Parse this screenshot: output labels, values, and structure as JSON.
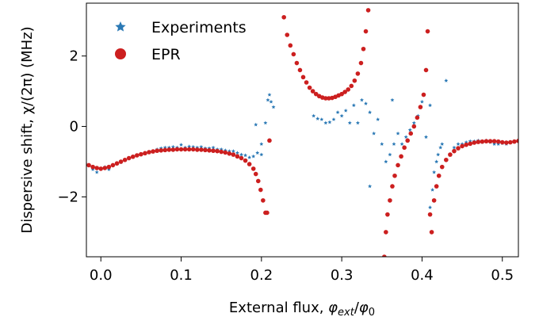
{
  "chart_data": {
    "type": "scatter",
    "xlabel": {
      "prefix": "External flux, ",
      "phi": "φ",
      "ext": "ext",
      "slash": "/",
      "phi0": "φ",
      "zero": "0"
    },
    "ylabel": "Dispersive shift, χ/(2π) (MHz)",
    "xlim": [
      -0.018,
      0.52
    ],
    "ylim": [
      -3.7,
      3.5
    ],
    "xticks": [
      0.0,
      0.1,
      0.2,
      0.3,
      0.4,
      0.5
    ],
    "xtick_labels": [
      "0.0",
      "0.1",
      "0.2",
      "0.3",
      "0.4",
      "0.5"
    ],
    "yticks": [
      -2,
      0,
      2
    ],
    "ytick_labels": [
      "−2",
      "0",
      "2"
    ],
    "legend_position": "top-left",
    "grid": false,
    "series": [
      {
        "name": "Experiments",
        "color": "#2b79b5",
        "marker": "star",
        "points": [
          [
            -0.015,
            -1.1
          ],
          [
            -0.01,
            -1.22
          ],
          [
            -0.005,
            -1.3
          ],
          [
            0.0,
            -1.2
          ],
          [
            0.005,
            -1.15
          ],
          [
            0.01,
            -1.22
          ],
          [
            0.015,
            -1.1
          ],
          [
            0.02,
            -1.05
          ],
          [
            0.025,
            -1.02
          ],
          [
            0.03,
            -0.95
          ],
          [
            0.035,
            -0.9
          ],
          [
            0.04,
            -0.85
          ],
          [
            0.045,
            -0.82
          ],
          [
            0.05,
            -0.78
          ],
          [
            0.055,
            -0.75
          ],
          [
            0.06,
            -0.72
          ],
          [
            0.065,
            -0.7
          ],
          [
            0.07,
            -0.65
          ],
          [
            0.075,
            -0.62
          ],
          [
            0.08,
            -0.6
          ],
          [
            0.085,
            -0.6
          ],
          [
            0.09,
            -0.58
          ],
          [
            0.095,
            -0.6
          ],
          [
            0.1,
            -0.52
          ],
          [
            0.105,
            -0.6
          ],
          [
            0.11,
            -0.57
          ],
          [
            0.115,
            -0.58
          ],
          [
            0.12,
            -0.6
          ],
          [
            0.125,
            -0.58
          ],
          [
            0.13,
            -0.62
          ],
          [
            0.135,
            -0.62
          ],
          [
            0.14,
            -0.6
          ],
          [
            0.145,
            -0.65
          ],
          [
            0.15,
            -0.65
          ],
          [
            0.155,
            -0.68
          ],
          [
            0.16,
            -0.7
          ],
          [
            0.165,
            -0.7
          ],
          [
            0.17,
            -0.75
          ],
          [
            0.175,
            -0.8
          ],
          [
            0.18,
            -0.82
          ],
          [
            0.185,
            -0.88
          ],
          [
            0.19,
            -0.85
          ],
          [
            0.195,
            -0.75
          ],
          [
            0.2,
            -0.8
          ],
          [
            0.193,
            0.05
          ],
          [
            0.2,
            -0.5
          ],
          [
            0.205,
            0.1
          ],
          [
            0.208,
            0.75
          ],
          [
            0.21,
            0.9
          ],
          [
            0.212,
            0.7
          ],
          [
            0.215,
            0.55
          ],
          [
            0.265,
            0.3
          ],
          [
            0.27,
            0.22
          ],
          [
            0.275,
            0.2
          ],
          [
            0.28,
            0.1
          ],
          [
            0.285,
            0.12
          ],
          [
            0.29,
            0.2
          ],
          [
            0.295,
            0.4
          ],
          [
            0.3,
            0.3
          ],
          [
            0.305,
            0.45
          ],
          [
            0.31,
            0.1
          ],
          [
            0.315,
            0.6
          ],
          [
            0.32,
            0.1
          ],
          [
            0.325,
            0.75
          ],
          [
            0.33,
            0.65
          ],
          [
            0.335,
            0.4
          ],
          [
            0.335,
            -1.7
          ],
          [
            0.34,
            -0.2
          ],
          [
            0.345,
            0.2
          ],
          [
            0.35,
            -0.5
          ],
          [
            0.355,
            -1.0
          ],
          [
            0.36,
            -0.8
          ],
          [
            0.365,
            -0.5
          ],
          [
            0.37,
            -0.2
          ],
          [
            0.375,
            -0.5
          ],
          [
            0.38,
            -0.3
          ],
          [
            0.385,
            -0.1
          ],
          [
            0.39,
            0.1
          ],
          [
            0.395,
            0.3
          ],
          [
            0.4,
            0.7
          ],
          [
            0.405,
            -0.3
          ],
          [
            0.41,
            0.6
          ],
          [
            0.363,
            0.75
          ],
          [
            0.41,
            -2.3
          ],
          [
            0.413,
            -1.8
          ],
          [
            0.415,
            -1.3
          ],
          [
            0.418,
            -1.0
          ],
          [
            0.42,
            -0.8
          ],
          [
            0.423,
            -0.6
          ],
          [
            0.425,
            -0.5
          ],
          [
            0.43,
            1.3
          ],
          [
            0.435,
            -0.8
          ],
          [
            0.44,
            -0.6
          ],
          [
            0.445,
            -0.5
          ],
          [
            0.45,
            -0.5
          ],
          [
            0.455,
            -0.45
          ],
          [
            0.46,
            -0.42
          ],
          [
            0.465,
            -0.42
          ],
          [
            0.47,
            -0.4
          ],
          [
            0.475,
            -0.45
          ],
          [
            0.48,
            -0.4
          ],
          [
            0.485,
            -0.45
          ],
          [
            0.49,
            -0.5
          ],
          [
            0.495,
            -0.5
          ],
          [
            0.5,
            -0.48
          ],
          [
            0.505,
            -0.5
          ],
          [
            0.51,
            -0.45
          ],
          [
            0.515,
            -0.42
          ],
          [
            0.52,
            -0.4
          ]
        ]
      },
      {
        "name": "EPR",
        "color": "#cc1f1f",
        "marker": "circle",
        "points": [
          [
            -0.02,
            -1.05
          ],
          [
            -0.015,
            -1.1
          ],
          [
            -0.01,
            -1.15
          ],
          [
            -0.005,
            -1.18
          ],
          [
            0.0,
            -1.2
          ],
          [
            0.005,
            -1.18
          ],
          [
            0.01,
            -1.15
          ],
          [
            0.015,
            -1.1
          ],
          [
            0.02,
            -1.05
          ],
          [
            0.025,
            -1.0
          ],
          [
            0.03,
            -0.95
          ],
          [
            0.035,
            -0.9
          ],
          [
            0.04,
            -0.86
          ],
          [
            0.045,
            -0.82
          ],
          [
            0.05,
            -0.79
          ],
          [
            0.055,
            -0.76
          ],
          [
            0.06,
            -0.73
          ],
          [
            0.065,
            -0.71
          ],
          [
            0.07,
            -0.69
          ],
          [
            0.075,
            -0.68
          ],
          [
            0.08,
            -0.67
          ],
          [
            0.085,
            -0.66
          ],
          [
            0.09,
            -0.66
          ],
          [
            0.095,
            -0.65
          ],
          [
            0.1,
            -0.65
          ],
          [
            0.105,
            -0.65
          ],
          [
            0.11,
            -0.65
          ],
          [
            0.115,
            -0.65
          ],
          [
            0.12,
            -0.66
          ],
          [
            0.125,
            -0.66
          ],
          [
            0.13,
            -0.67
          ],
          [
            0.135,
            -0.68
          ],
          [
            0.14,
            -0.69
          ],
          [
            0.145,
            -0.7
          ],
          [
            0.15,
            -0.72
          ],
          [
            0.155,
            -0.74
          ],
          [
            0.16,
            -0.77
          ],
          [
            0.165,
            -0.8
          ],
          [
            0.17,
            -0.85
          ],
          [
            0.175,
            -0.9
          ],
          [
            0.18,
            -0.97
          ],
          [
            0.185,
            -1.07
          ],
          [
            0.19,
            -1.2
          ],
          [
            0.193,
            -1.35
          ],
          [
            0.196,
            -1.55
          ],
          [
            0.199,
            -1.8
          ],
          [
            0.202,
            -2.1
          ],
          [
            0.205,
            -2.45
          ],
          [
            0.207,
            -2.45
          ],
          [
            0.21,
            -0.4
          ],
          [
            0.228,
            3.1
          ],
          [
            0.232,
            2.6
          ],
          [
            0.236,
            2.3
          ],
          [
            0.24,
            2.05
          ],
          [
            0.244,
            1.8
          ],
          [
            0.248,
            1.6
          ],
          [
            0.252,
            1.4
          ],
          [
            0.256,
            1.25
          ],
          [
            0.26,
            1.1
          ],
          [
            0.264,
            1.0
          ],
          [
            0.268,
            0.92
          ],
          [
            0.272,
            0.86
          ],
          [
            0.276,
            0.82
          ],
          [
            0.28,
            0.8
          ],
          [
            0.284,
            0.8
          ],
          [
            0.288,
            0.81
          ],
          [
            0.292,
            0.84
          ],
          [
            0.296,
            0.88
          ],
          [
            0.3,
            0.92
          ],
          [
            0.304,
            0.98
          ],
          [
            0.308,
            1.05
          ],
          [
            0.312,
            1.15
          ],
          [
            0.316,
            1.3
          ],
          [
            0.32,
            1.5
          ],
          [
            0.324,
            1.8
          ],
          [
            0.327,
            2.2
          ],
          [
            0.33,
            2.7
          ],
          [
            0.333,
            3.3
          ],
          [
            0.353,
            -3.7
          ],
          [
            0.355,
            -3.0
          ],
          [
            0.357,
            -2.5
          ],
          [
            0.36,
            -2.1
          ],
          [
            0.363,
            -1.7
          ],
          [
            0.366,
            -1.4
          ],
          [
            0.37,
            -1.1
          ],
          [
            0.374,
            -0.85
          ],
          [
            0.378,
            -0.6
          ],
          [
            0.382,
            -0.4
          ],
          [
            0.386,
            -0.2
          ],
          [
            0.39,
            0.0
          ],
          [
            0.394,
            0.25
          ],
          [
            0.398,
            0.55
          ],
          [
            0.402,
            0.9
          ],
          [
            0.405,
            1.6
          ],
          [
            0.407,
            2.7
          ],
          [
            0.41,
            -2.5
          ],
          [
            0.412,
            -3.0
          ],
          [
            0.415,
            -2.1
          ],
          [
            0.418,
            -1.7
          ],
          [
            0.421,
            -1.4
          ],
          [
            0.425,
            -1.15
          ],
          [
            0.43,
            -0.95
          ],
          [
            0.435,
            -0.8
          ],
          [
            0.44,
            -0.7
          ],
          [
            0.445,
            -0.62
          ],
          [
            0.45,
            -0.56
          ],
          [
            0.455,
            -0.52
          ],
          [
            0.46,
            -0.49
          ],
          [
            0.465,
            -0.46
          ],
          [
            0.47,
            -0.44
          ],
          [
            0.475,
            -0.43
          ],
          [
            0.48,
            -0.42
          ],
          [
            0.485,
            -0.42
          ],
          [
            0.49,
            -0.42
          ],
          [
            0.495,
            -0.43
          ],
          [
            0.5,
            -0.45
          ],
          [
            0.505,
            -0.46
          ],
          [
            0.51,
            -0.45
          ],
          [
            0.515,
            -0.43
          ],
          [
            0.52,
            -0.41
          ]
        ]
      }
    ]
  }
}
